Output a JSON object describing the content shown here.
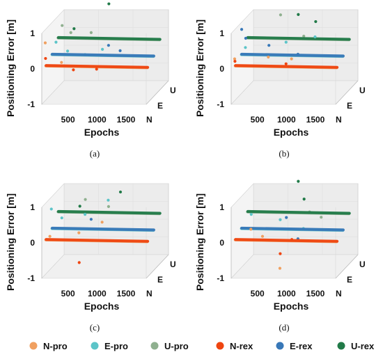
{
  "legend": [
    {
      "label": "N-pro",
      "color": "#f0a060"
    },
    {
      "label": "E-pro",
      "color": "#5cc4c8"
    },
    {
      "label": "U-pro",
      "color": "#8fb08f"
    },
    {
      "label": "N-rex",
      "color": "#ef4510"
    },
    {
      "label": "E-rex",
      "color": "#3878b8"
    },
    {
      "label": "U-rex",
      "color": "#217a48"
    }
  ],
  "chart_data": [
    {
      "type": "scatter",
      "caption": "(a)",
      "zlabel": "Positioning Error [m]",
      "xlabel": "Epochs",
      "zticks": [
        "1",
        "0",
        "-1"
      ],
      "xticks": [
        "500",
        "1000",
        "1500"
      ],
      "yticks": [
        "N",
        "E",
        "U"
      ],
      "zlim": [
        -1,
        1
      ],
      "xlim": [
        0,
        1800
      ],
      "series": [
        {
          "name": "N-pro",
          "component": "N",
          "baseline": 0.0,
          "drift": -0.05,
          "outliers": [
            [
              20,
              0.65
            ],
            [
              300,
              0.1
            ]
          ]
        },
        {
          "name": "E-pro",
          "component": "E",
          "baseline": 0.1,
          "drift": -0.05,
          "outliers": [
            [
              100,
              0.45
            ],
            [
              300,
              0.2
            ],
            [
              600,
              0.1
            ],
            [
              900,
              0.25
            ]
          ]
        },
        {
          "name": "U-pro",
          "component": "U",
          "baseline": 0.35,
          "drift": -0.05,
          "outliers": [
            [
              100,
              0.7
            ],
            [
              250,
              0.5
            ],
            [
              600,
              0.5
            ]
          ]
        },
        {
          "name": "N-rex",
          "component": "N",
          "baseline": 0.0,
          "drift": -0.05,
          "outliers": [
            [
              20,
              0.2
            ],
            [
              500,
              -0.12
            ],
            [
              900,
              -0.1
            ]
          ]
        },
        {
          "name": "E-rex",
          "component": "E",
          "baseline": 0.1,
          "drift": -0.05,
          "outliers": [
            [
              1000,
              0.35
            ],
            [
              1200,
              0.2
            ]
          ]
        },
        {
          "name": "U-rex",
          "component": "U",
          "baseline": 0.35,
          "drift": -0.05,
          "outliers": [
            [
              300,
              0.6
            ],
            [
              900,
              1.3
            ]
          ]
        }
      ]
    },
    {
      "type": "scatter",
      "caption": "(b)",
      "zlabel": "Positioning Error [m]",
      "xlabel": "Epochs",
      "zticks": [
        "1",
        "0",
        "-1"
      ],
      "xticks": [
        "500",
        "1000",
        "1500"
      ],
      "yticks": [
        "N",
        "E",
        "U"
      ],
      "zlim": [
        -1,
        1
      ],
      "xlim": [
        0,
        1800
      ],
      "series": [
        {
          "name": "N-pro",
          "component": "N",
          "baseline": 0.0,
          "drift": -0.05,
          "outliers": [
            [
              20,
              0.2
            ],
            [
              600,
              0.25
            ],
            [
              1000,
              0.2
            ]
          ]
        },
        {
          "name": "E-pro",
          "component": "E",
          "baseline": 0.1,
          "drift": -0.05,
          "outliers": [
            [
              100,
              0.3
            ],
            [
              800,
              0.45
            ],
            [
              1300,
              0.6
            ]
          ]
        },
        {
          "name": "U-pro",
          "component": "U",
          "baseline": 0.35,
          "drift": -0.05,
          "outliers": [
            [
              600,
              1.0
            ],
            [
              1000,
              0.4
            ]
          ]
        },
        {
          "name": "N-rex",
          "component": "N",
          "baseline": 0.0,
          "drift": -0.05,
          "outliers": [
            [
              20,
              0.12
            ],
            [
              900,
              0.05
            ]
          ]
        },
        {
          "name": "E-rex",
          "component": "E",
          "baseline": 0.1,
          "drift": -0.05,
          "outliers": [
            [
              30,
              0.8
            ],
            [
              100,
              0.55
            ],
            [
              500,
              0.35
            ],
            [
              1000,
              0.1
            ]
          ]
        },
        {
          "name": "U-rex",
          "component": "U",
          "baseline": 0.35,
          "drift": -0.05,
          "outliers": [
            [
              900,
              1.0
            ],
            [
              1200,
              0.8
            ]
          ]
        }
      ]
    },
    {
      "type": "scatter",
      "caption": "(c)",
      "zlabel": "Positioning Error [m]",
      "xlabel": "Epochs",
      "zticks": [
        "1",
        "0",
        "-1"
      ],
      "xticks": [
        "500",
        "1000",
        "1500"
      ],
      "yticks": [
        "N",
        "E",
        "U"
      ],
      "zlim": [
        -1,
        1
      ],
      "xlim": [
        0,
        1800
      ],
      "series": [
        {
          "name": "N-pro",
          "component": "N",
          "baseline": 0.0,
          "drift": -0.05,
          "outliers": [
            [
              100,
              0.1
            ],
            [
              600,
              0.2
            ],
            [
              1000,
              0.5
            ]
          ]
        },
        {
          "name": "E-pro",
          "component": "E",
          "baseline": 0.1,
          "drift": -0.05,
          "outliers": [
            [
              20,
              0.65
            ],
            [
              200,
              0.4
            ],
            [
              600,
              0.5
            ],
            [
              1000,
              0.9
            ]
          ]
        },
        {
          "name": "U-pro",
          "component": "U",
          "baseline": 0.35,
          "drift": -0.05,
          "outliers": [
            [
              500,
              0.7
            ],
            [
              900,
              0.5
            ]
          ]
        },
        {
          "name": "N-rex",
          "component": "N",
          "baseline": 0.0,
          "drift": -0.05,
          "outliers": [
            [
              600,
              -0.65
            ]
          ]
        },
        {
          "name": "E-rex",
          "component": "E",
          "baseline": 0.1,
          "drift": -0.05,
          "outliers": [
            [
              700,
              0.35
            ]
          ]
        },
        {
          "name": "U-rex",
          "component": "U",
          "baseline": 0.35,
          "drift": -0.05,
          "outliers": [
            [
              400,
              0.5
            ],
            [
              1100,
              0.9
            ]
          ]
        }
      ]
    },
    {
      "type": "scatter",
      "caption": "(d)",
      "zlabel": "Positioning Error [m]",
      "xlabel": "Epochs",
      "zticks": [
        "1",
        "0",
        "-1"
      ],
      "xticks": [
        "500",
        "1000",
        "1500"
      ],
      "yticks": [
        "N",
        "E",
        "U"
      ],
      "zlim": [
        -1,
        1
      ],
      "xlim": [
        0,
        1800
      ],
      "series": [
        {
          "name": "N-pro",
          "component": "N",
          "baseline": 0.0,
          "drift": -0.05,
          "outliers": [
            [
              300,
              0.3
            ],
            [
              500,
              0.1
            ],
            [
              800,
              -0.8
            ]
          ]
        },
        {
          "name": "E-pro",
          "component": "E",
          "baseline": 0.1,
          "drift": -0.05,
          "outliers": [
            [
              200,
              0.5
            ],
            [
              700,
              0.35
            ],
            [
              1100,
              0.1
            ]
          ]
        },
        {
          "name": "U-pro",
          "component": "U",
          "baseline": 0.35,
          "drift": -0.05,
          "outliers": [
            [
              1100,
              0.35
            ],
            [
              1300,
              0.2
            ]
          ]
        },
        {
          "name": "N-rex",
          "component": "N",
          "baseline": 0.0,
          "drift": -0.05,
          "outliers": [
            [
              800,
              -0.4
            ],
            [
              1000,
              0.0
            ]
          ]
        },
        {
          "name": "E-rex",
          "component": "E",
          "baseline": 0.1,
          "drift": -0.05,
          "outliers": [
            [
              1000,
              -0.2
            ],
            [
              800,
              0.4
            ]
          ]
        },
        {
          "name": "U-rex",
          "component": "U",
          "baseline": 0.35,
          "drift": -0.05,
          "outliers": [
            [
              900,
              1.2
            ],
            [
              1000,
              0.7
            ]
          ]
        }
      ]
    }
  ]
}
